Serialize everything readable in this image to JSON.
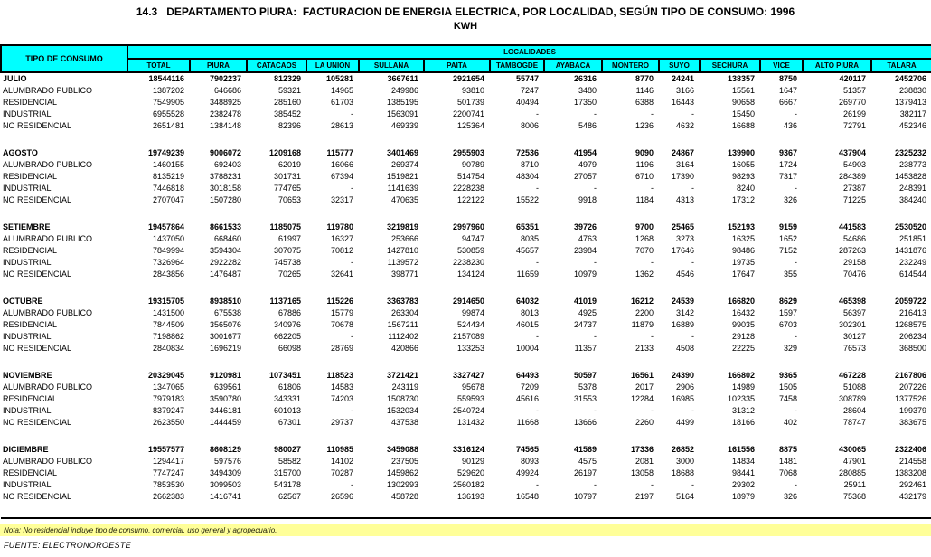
{
  "title": "14.3   DEPARTAMENTO PIURA:  FACTURACION DE ENERGIA ELECTRICA, POR LOCALIDAD, SEGÚN TIPO DE CONSUMO: 1996",
  "subtitle": "KWH",
  "colors": {
    "header_bg": "#00FFFF",
    "note_bg": "#FFFF99",
    "border": "#000000"
  },
  "table": {
    "row_header": "TIPO DE CONSUMO",
    "group_header": "LOCALIDADES",
    "columns": [
      "TOTAL",
      "PIURA",
      "CATACAOS",
      "LA UNION",
      "SULLANA",
      "PAITA",
      "TAMBOGDE",
      "AYABACA",
      "MONTERO",
      "SUYO",
      "SECHURA",
      "VICE",
      "ALTO PIURA",
      "TALARA"
    ],
    "months": [
      {
        "label": "JULIO",
        "total": [
          "18544116",
          "7902237",
          "812329",
          "105281",
          "3667611",
          "2921654",
          "55747",
          "26316",
          "8770",
          "24241",
          "138357",
          "8750",
          "420117",
          "2452706"
        ],
        "categories": [
          {
            "label": "ALUMBRADO PUBLICO",
            "values": [
              "1387202",
              "646686",
              "59321",
              "14965",
              "249986",
              "93810",
              "7247",
              "3480",
              "1146",
              "3166",
              "15561",
              "1647",
              "51357",
              "238830"
            ]
          },
          {
            "label": "RESIDENCIAL",
            "values": [
              "7549905",
              "3488925",
              "285160",
              "61703",
              "1385195",
              "501739",
              "40494",
              "17350",
              "6388",
              "16443",
              "90658",
              "6667",
              "269770",
              "1379413"
            ]
          },
          {
            "label": "INDUSTRIAL",
            "values": [
              "6955528",
              "2382478",
              "385452",
              "-",
              "1563091",
              "2200741",
              "-",
              "-",
              "-",
              "-",
              "15450",
              "-",
              "26199",
              "382117"
            ]
          },
          {
            "label": "NO RESIDENCIAL",
            "values": [
              "2651481",
              "1384148",
              "82396",
              "28613",
              "469339",
              "125364",
              "8006",
              "5486",
              "1236",
              "4632",
              "16688",
              "436",
              "72791",
              "452346"
            ]
          }
        ]
      },
      {
        "label": "AGOSTO",
        "total": [
          "19749239",
          "9006072",
          "1209168",
          "115777",
          "3401469",
          "2955903",
          "72536",
          "41954",
          "9090",
          "24867",
          "139900",
          "9367",
          "437904",
          "2325232"
        ],
        "categories": [
          {
            "label": "ALUMBRADO PUBLICO",
            "values": [
              "1460155",
              "692403",
              "62019",
              "16066",
              "269374",
              "90789",
              "8710",
              "4979",
              "1196",
              "3164",
              "16055",
              "1724",
              "54903",
              "238773"
            ]
          },
          {
            "label": "RESIDENCIAL",
            "values": [
              "8135219",
              "3788231",
              "301731",
              "67394",
              "1519821",
              "514754",
              "48304",
              "27057",
              "6710",
              "17390",
              "98293",
              "7317",
              "284389",
              "1453828"
            ]
          },
          {
            "label": "INDUSTRIAL",
            "values": [
              "7446818",
              "3018158",
              "774765",
              "-",
              "1141639",
              "2228238",
              "-",
              "-",
              "-",
              "-",
              "8240",
              "-",
              "27387",
              "248391"
            ]
          },
          {
            "label": "NO RESIDENCIAL",
            "values": [
              "2707047",
              "1507280",
              "70653",
              "32317",
              "470635",
              "122122",
              "15522",
              "9918",
              "1184",
              "4313",
              "17312",
              "326",
              "71225",
              "384240"
            ]
          }
        ]
      },
      {
        "label": "SETIEMBRE",
        "total": [
          "19457864",
          "8661533",
          "1185075",
          "119780",
          "3219819",
          "2997960",
          "65351",
          "39726",
          "9700",
          "25465",
          "152193",
          "9159",
          "441583",
          "2530520"
        ],
        "categories": [
          {
            "label": "ALUMBRADO PUBLICO",
            "values": [
              "1437050",
              "668460",
              "61997",
              "16327",
              "253666",
              "94747",
              "8035",
              "4763",
              "1268",
              "3273",
              "16325",
              "1652",
              "54686",
              "251851"
            ]
          },
          {
            "label": "RESIDENCIAL",
            "values": [
              "7849994",
              "3594304",
              "307075",
              "70812",
              "1427810",
              "530859",
              "45657",
              "23984",
              "7070",
              "17646",
              "98486",
              "7152",
              "287263",
              "1431876"
            ]
          },
          {
            "label": "INDUSTRIAL",
            "values": [
              "7326964",
              "2922282",
              "745738",
              "-",
              "1139572",
              "2238230",
              "-",
              "-",
              "-",
              "-",
              "19735",
              "-",
              "29158",
              "232249"
            ]
          },
          {
            "label": "NO RESIDENCIAL",
            "values": [
              "2843856",
              "1476487",
              "70265",
              "32641",
              "398771",
              "134124",
              "11659",
              "10979",
              "1362",
              "4546",
              "17647",
              "355",
              "70476",
              "614544"
            ]
          }
        ]
      },
      {
        "label": "OCTUBRE",
        "total": [
          "19315705",
          "8938510",
          "1137165",
          "115226",
          "3363783",
          "2914650",
          "64032",
          "41019",
          "16212",
          "24539",
          "166820",
          "8629",
          "465398",
          "2059722"
        ],
        "categories": [
          {
            "label": "ALUMBRADO PUBLICO",
            "values": [
              "1431500",
              "675538",
              "67886",
              "15779",
              "263304",
              "99874",
              "8013",
              "4925",
              "2200",
              "3142",
              "16432",
              "1597",
              "56397",
              "216413"
            ]
          },
          {
            "label": "RESIDENCIAL",
            "values": [
              "7844509",
              "3565076",
              "340976",
              "70678",
              "1567211",
              "524434",
              "46015",
              "24737",
              "11879",
              "16889",
              "99035",
              "6703",
              "302301",
              "1268575"
            ]
          },
          {
            "label": "INDUSTRIAL",
            "values": [
              "7198862",
              "3001677",
              "662205",
              "-",
              "1112402",
              "2157089",
              "-",
              "-",
              "-",
              "-",
              "29128",
              "-",
              "30127",
              "206234"
            ]
          },
          {
            "label": "NO RESIDENCIAL",
            "values": [
              "2840834",
              "1696219",
              "66098",
              "28769",
              "420866",
              "133253",
              "10004",
              "11357",
              "2133",
              "4508",
              "22225",
              "329",
              "76573",
              "368500"
            ]
          }
        ]
      },
      {
        "label": "NOVIEMBRE",
        "total": [
          "20329045",
          "9120981",
          "1073451",
          "118523",
          "3721421",
          "3327427",
          "64493",
          "50597",
          "16561",
          "24390",
          "166802",
          "9365",
          "467228",
          "2167806"
        ],
        "categories": [
          {
            "label": "ALUMBRADO PUBLICO",
            "values": [
              "1347065",
              "639561",
              "61806",
              "14583",
              "243119",
              "95678",
              "7209",
              "5378",
              "2017",
              "2906",
              "14989",
              "1505",
              "51088",
              "207226"
            ]
          },
          {
            "label": "RESIDENCIAL",
            "values": [
              "7979183",
              "3590780",
              "343331",
              "74203",
              "1508730",
              "559593",
              "45616",
              "31553",
              "12284",
              "16985",
              "102335",
              "7458",
              "308789",
              "1377526"
            ]
          },
          {
            "label": "INDUSTRIAL",
            "values": [
              "8379247",
              "3446181",
              "601013",
              "-",
              "1532034",
              "2540724",
              "-",
              "-",
              "-",
              "-",
              "31312",
              "-",
              "28604",
              "199379"
            ]
          },
          {
            "label": "NO RESIDENCIAL",
            "values": [
              "2623550",
              "1444459",
              "67301",
              "29737",
              "437538",
              "131432",
              "11668",
              "13666",
              "2260",
              "4499",
              "18166",
              "402",
              "78747",
              "383675"
            ]
          }
        ]
      },
      {
        "label": "DICIEMBRE",
        "total": [
          "19557577",
          "8608129",
          "980027",
          "110985",
          "3459088",
          "3316124",
          "74565",
          "41569",
          "17336",
          "26852",
          "161556",
          "8875",
          "430065",
          "2322406"
        ],
        "categories": [
          {
            "label": "ALUMBRADO PUBLICO",
            "values": [
              "1294417",
              "597576",
              "58582",
              "14102",
              "237505",
              "90129",
              "8093",
              "4575",
              "2081",
              "3000",
              "14834",
              "1481",
              "47901",
              "214558"
            ]
          },
          {
            "label": "RESIDENCIAL",
            "values": [
              "7747247",
              "3494309",
              "315700",
              "70287",
              "1459862",
              "529620",
              "49924",
              "26197",
              "13058",
              "18688",
              "98441",
              "7068",
              "280885",
              "1383208"
            ]
          },
          {
            "label": "INDUSTRIAL",
            "values": [
              "7853530",
              "3099503",
              "543178",
              "-",
              "1302993",
              "2560182",
              "-",
              "-",
              "-",
              "-",
              "29302",
              "-",
              "25911",
              "292461"
            ]
          },
          {
            "label": "NO RESIDENCIAL",
            "values": [
              "2662383",
              "1416741",
              "62567",
              "26596",
              "458728",
              "136193",
              "16548",
              "10797",
              "2197",
              "5164",
              "18979",
              "326",
              "75368",
              "432179"
            ]
          }
        ]
      }
    ]
  },
  "footer": {
    "nota": "Nota:  No residencial incluye tipo de consumo, comercial, uso general y agropecuario.",
    "fuente": "FUENTE: ELECTRONOROESTE"
  }
}
